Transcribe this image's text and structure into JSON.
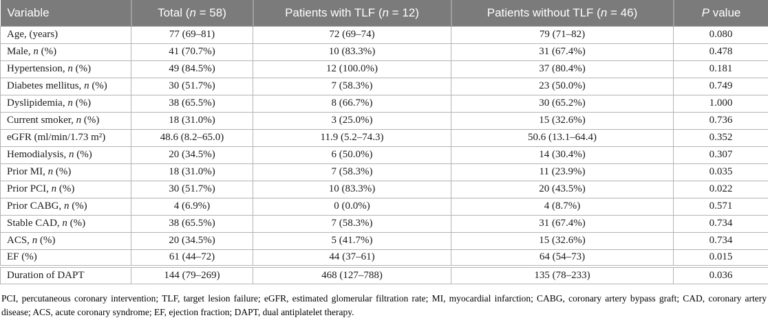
{
  "table": {
    "columns": [
      "Variable",
      "Total (n = 58)",
      "Patients with TLF (n = 12)",
      "Patients without TLF (n = 46)",
      "P value"
    ],
    "rows": [
      [
        "Age, (years)",
        "77 (69–81)",
        "72 (69–74)",
        "79 (71–82)",
        "0.080"
      ],
      [
        "Male, n (%)",
        "41 (70.7%)",
        "10 (83.3%)",
        "31 (67.4%)",
        "0.478"
      ],
      [
        "Hypertension, n (%)",
        "49 (84.5%)",
        "12 (100.0%)",
        "37 (80.4%)",
        "0.181"
      ],
      [
        "Diabetes mellitus, n (%)",
        "30 (51.7%)",
        "7 (58.3%)",
        "23 (50.0%)",
        "0.749"
      ],
      [
        "Dyslipidemia, n (%)",
        "38 (65.5%)",
        "8 (66.7%)",
        "30 (65.2%)",
        "1.000"
      ],
      [
        "Current smoker, n (%)",
        "18 (31.0%)",
        "3 (25.0%)",
        "15 (32.6%)",
        "0.736"
      ],
      [
        "eGFR (ml/min/1.73 m²)",
        "48.6 (8.2–65.0)",
        "11.9 (5.2–74.3)",
        "50.6 (13.1–64.4)",
        "0.352"
      ],
      [
        "Hemodialysis, n (%)",
        "20 (34.5%)",
        "6 (50.0%)",
        "14 (30.4%)",
        "0.307"
      ],
      [
        "Prior MI, n (%)",
        "18 (31.0%)",
        "7 (58.3%)",
        "11 (23.9%)",
        "0.035"
      ],
      [
        "Prior PCI, n (%)",
        "30 (51.7%)",
        "10 (83.3%)",
        "20 (43.5%)",
        "0.022"
      ],
      [
        "Prior CABG, n (%)",
        "4 (6.9%)",
        "0 (0.0%)",
        "4 (8.7%)",
        "0.571"
      ],
      [
        "Stable CAD, n (%)",
        "38 (65.5%)",
        "7 (58.3%)",
        "31 (67.4%)",
        "0.734"
      ],
      [
        "ACS, n (%)",
        "20 (34.5%)",
        "5 (41.7%)",
        "15 (32.6%)",
        "0.734"
      ],
      [
        "EF (%)",
        "61 (44–72)",
        "44 (37–61)",
        "64 (54–73)",
        "0.015"
      ],
      [
        "Duration of DAPT",
        "144 (79–269)",
        "468 (127–788)",
        "135 (78–233)",
        "0.036"
      ]
    ]
  },
  "footnote": "PCI, percutaneous coronary intervention; TLF, target lesion failure; eGFR, estimated glomerular filtration rate; MI, myocardial infarction; CABG, coronary artery bypass graft; CAD, coronary artery disease; ACS, acute coronary syndrome; EF, ejection fraction; DAPT, dual antiplatelet therapy.",
  "colors": {
    "header_bg": "#7b7b7b",
    "header_separator": "#9e9e9e",
    "header_text": "#ffffff",
    "border": "#b3b3b3"
  }
}
